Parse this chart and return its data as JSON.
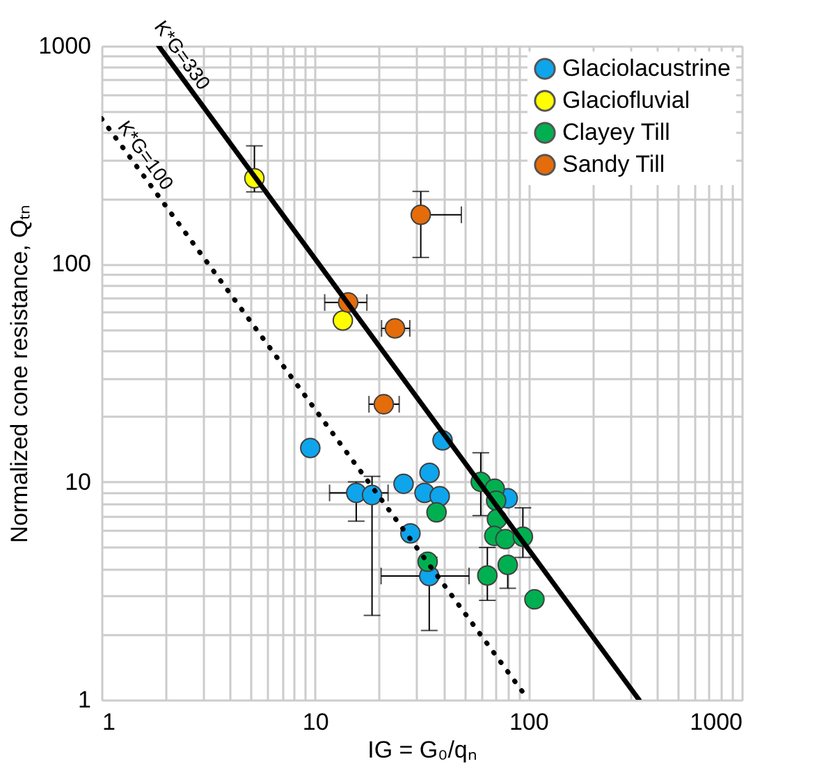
{
  "chart_data": {
    "type": "scatter",
    "xlabel": "IG = G₀/qₙ",
    "ylabel": "Normalized cone resistance, Qₜₙ",
    "log": "xy",
    "grid": true,
    "legend": "top right",
    "marker": "circle",
    "xlim": [
      1,
      1000
    ],
    "ylim": [
      1,
      1000
    ],
    "xticks": [
      1,
      {
        "value": 2,
        "label": null
      },
      {
        "value": 3,
        "label": null
      },
      {
        "value": 4,
        "label": null
      },
      {
        "value": 5,
        "label": null
      },
      {
        "value": 6,
        "label": null
      },
      {
        "value": 7,
        "label": null
      },
      {
        "value": 8,
        "label": null
      },
      {
        "value": 9,
        "label": null
      },
      10,
      {
        "value": 20,
        "label": null
      },
      {
        "value": 30,
        "label": null
      },
      {
        "value": 40,
        "label": null
      },
      {
        "value": 50,
        "label": null
      },
      {
        "value": 60,
        "label": null
      },
      {
        "value": 70,
        "label": null
      },
      {
        "value": 80,
        "label": null
      },
      {
        "value": 90,
        "label": null
      },
      100,
      {
        "value": 200,
        "label": null
      },
      {
        "value": 300,
        "label": null
      },
      {
        "value": 400,
        "label": null
      },
      {
        "value": 500,
        "label": null
      },
      {
        "value": 600,
        "label": null
      },
      {
        "value": 700,
        "label": null
      },
      {
        "value": 800,
        "label": null
      },
      {
        "value": 900,
        "label": null
      },
      1000
    ],
    "yticks": [
      1,
      {
        "value": 2,
        "label": null
      },
      {
        "value": 3,
        "label": null
      },
      {
        "value": 4,
        "label": null
      },
      {
        "value": 5,
        "label": null
      },
      {
        "value": 6,
        "label": null
      },
      {
        "value": 7,
        "label": null
      },
      {
        "value": 8,
        "label": null
      },
      {
        "value": 9,
        "label": null
      },
      10,
      {
        "value": 20,
        "label": null
      },
      {
        "value": 30,
        "label": null
      },
      {
        "value": 40,
        "label": null
      },
      {
        "value": 50,
        "label": null
      },
      {
        "value": 60,
        "label": null
      },
      {
        "value": 70,
        "label": null
      },
      {
        "value": 80,
        "label": null
      },
      {
        "value": 90,
        "label": null
      },
      100,
      {
        "value": 200,
        "label": null
      },
      {
        "value": 300,
        "label": null
      },
      {
        "value": 400,
        "label": null
      },
      {
        "value": 500,
        "label": null
      },
      {
        "value": 600,
        "label": null
      },
      {
        "value": 700,
        "label": null
      },
      {
        "value": 800,
        "label": null
      },
      {
        "value": 900,
        "label": null
      },
      1000
    ],
    "series": [
      {
        "name": "Glaciolacustrine",
        "color": "#0ea5ec",
        "x": [
          9.5,
          39.6,
          15.6,
          18.5,
          26,
          34.4,
          32.6,
          38.4,
          28,
          34.3,
          80
        ],
        "values": [
          14.3,
          15.5,
          8.9,
          8.7,
          9.8,
          11,
          8.9,
          8.6,
          5.8,
          3.7,
          8.4
        ],
        "errors": [
          null,
          null,
          [
            6.6,
            10
          ],
          [
            2.44,
            10.6
          ],
          null,
          null,
          null,
          null,
          null,
          [
            2.08,
            4.5
          ],
          null
        ],
        "xerrors": [
          null,
          null,
          [
            11.7,
            22
          ],
          null,
          null,
          null,
          null,
          null,
          null,
          [
            20.4,
            52.7
          ],
          null
        ]
      },
      {
        "name": "Glaciofluvial",
        "color": "#ffff00",
        "x": [
          5.2,
          13.5
        ],
        "values": [
          247,
          55
        ],
        "errors": [
          [
            214,
            348
          ],
          null
        ]
      },
      {
        "name": "Clayey Till",
        "color": "#00b050",
        "x": [
          59.8,
          69.5,
          70.6,
          71.2,
          69.2,
          78,
          94.2,
          37.1,
          33.7,
          64.2,
          80,
          106.7
        ],
        "values": [
          10,
          9.3,
          8.2,
          6.75,
          5.65,
          5.46,
          5.6,
          7.25,
          4.3,
          3.72,
          4.16,
          2.89
        ],
        "errors": [
          [
            7,
            13.6
          ],
          null,
          null,
          null,
          null,
          null,
          [
            4.5,
            7.6
          ],
          null,
          null,
          [
            2.86,
            5
          ],
          [
            3.25,
            4.16
          ],
          null
        ]
      },
      {
        "name": "Sandy Till",
        "color": "#e46c0a",
        "x": [
          31.3,
          14.3,
          23.7,
          21
        ],
        "values": [
          168,
          66.5,
          50.6,
          22.7
        ],
        "errors": [
          [
            107,
            215
          ],
          null,
          null,
          null
        ],
        "xerrors": [
          [
            31.3,
            48.5
          ],
          [
            11.1,
            17.5
          ],
          [
            20.5,
            27.8
          ],
          [
            17.9,
            24.8
          ]
        ]
      },
      {
        "type": "line",
        "color": "#000000",
        "line_style": "solid",
        "marker": "none",
        "x": [
          1.85,
          330
        ],
        "values": [
          1000,
          1
        ]
      },
      {
        "type": "line",
        "color": "#000000",
        "line_style": "dotted",
        "marker": "none",
        "x": [
          1,
          100
        ],
        "values": [
          464,
          1
        ]
      }
    ],
    "annotations": [
      {
        "text": "K*G=330",
        "x": 2.3,
        "y": 750
      },
      {
        "text": "K*G=100",
        "x": 1.55,
        "y": 260
      }
    ]
  }
}
